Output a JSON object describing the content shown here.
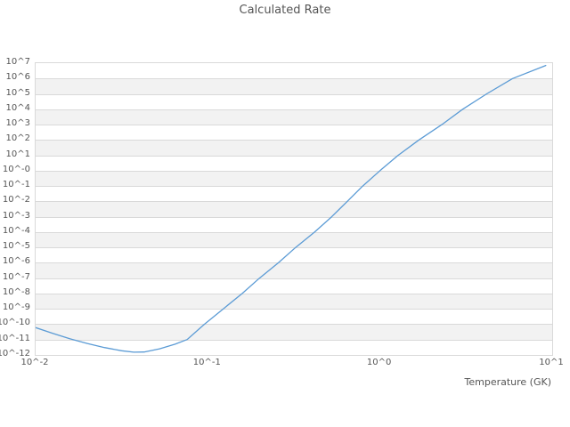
{
  "title": "Calculated Rate",
  "colors": {
    "line": "#5b9bd5",
    "grid": "#d9d9d9",
    "band": "#f2f2f2",
    "text": "#555555",
    "background": "#ffffff"
  },
  "chart_data": {
    "type": "line",
    "scale": "log-log",
    "title": "Calculated Rate",
    "xlabel": "Temperature (GK)",
    "ylabel": "",
    "xlim_log10": [
      -2,
      1
    ],
    "ylim_log10": [
      -12,
      7
    ],
    "x_tick_labels": [
      "10^-2",
      "10^-1",
      "10^0",
      "10^1"
    ],
    "x_tick_log10": [
      -2,
      -1,
      0,
      1
    ],
    "y_tick_labels": [
      "10^7",
      "10^6",
      "10^5",
      "10^4",
      "10^3",
      "10^2",
      "10^1",
      "10^-0",
      "10^-1",
      "10^-2",
      "10^-3",
      "10^-4",
      "10^-5",
      "10^-6",
      "10^-7",
      "10^-8",
      "10^-9",
      "10^-10",
      "10^-11",
      "10^-12"
    ],
    "y_tick_log10": [
      7,
      6,
      5,
      4,
      3,
      2,
      1,
      0,
      -1,
      -2,
      -3,
      -4,
      -5,
      -6,
      -7,
      -8,
      -9,
      -10,
      -11,
      -12
    ],
    "grid": "horizontal gridlines with alternating shaded decade bands",
    "legend": "none",
    "series": [
      {
        "name": "calculated-rate",
        "points_log10": [
          [
            -2.0,
            -10.22
          ],
          [
            -1.9,
            -10.6
          ],
          [
            -1.8,
            -10.95
          ],
          [
            -1.7,
            -11.25
          ],
          [
            -1.6,
            -11.52
          ],
          [
            -1.5,
            -11.73
          ],
          [
            -1.43,
            -11.82
          ],
          [
            -1.37,
            -11.81
          ],
          [
            -1.28,
            -11.6
          ],
          [
            -1.19,
            -11.3
          ],
          [
            -1.12,
            -11.0
          ],
          [
            -1.02,
            -10.0
          ],
          [
            -0.91,
            -9.0
          ],
          [
            -0.8,
            -8.0
          ],
          [
            -0.7,
            -7.0
          ],
          [
            -0.59,
            -6.0
          ],
          [
            -0.49,
            -5.0
          ],
          [
            -0.38,
            -4.0
          ],
          [
            -0.28,
            -3.0
          ],
          [
            -0.19,
            -2.0
          ],
          [
            -0.1,
            -1.0
          ],
          [
            0.0,
            0.0
          ],
          [
            0.105,
            1.0
          ],
          [
            0.226,
            2.0
          ],
          [
            0.359,
            3.0
          ],
          [
            0.48,
            4.0
          ],
          [
            0.62,
            5.0
          ],
          [
            0.77,
            6.0
          ],
          [
            0.963,
            6.85
          ]
        ]
      }
    ]
  }
}
